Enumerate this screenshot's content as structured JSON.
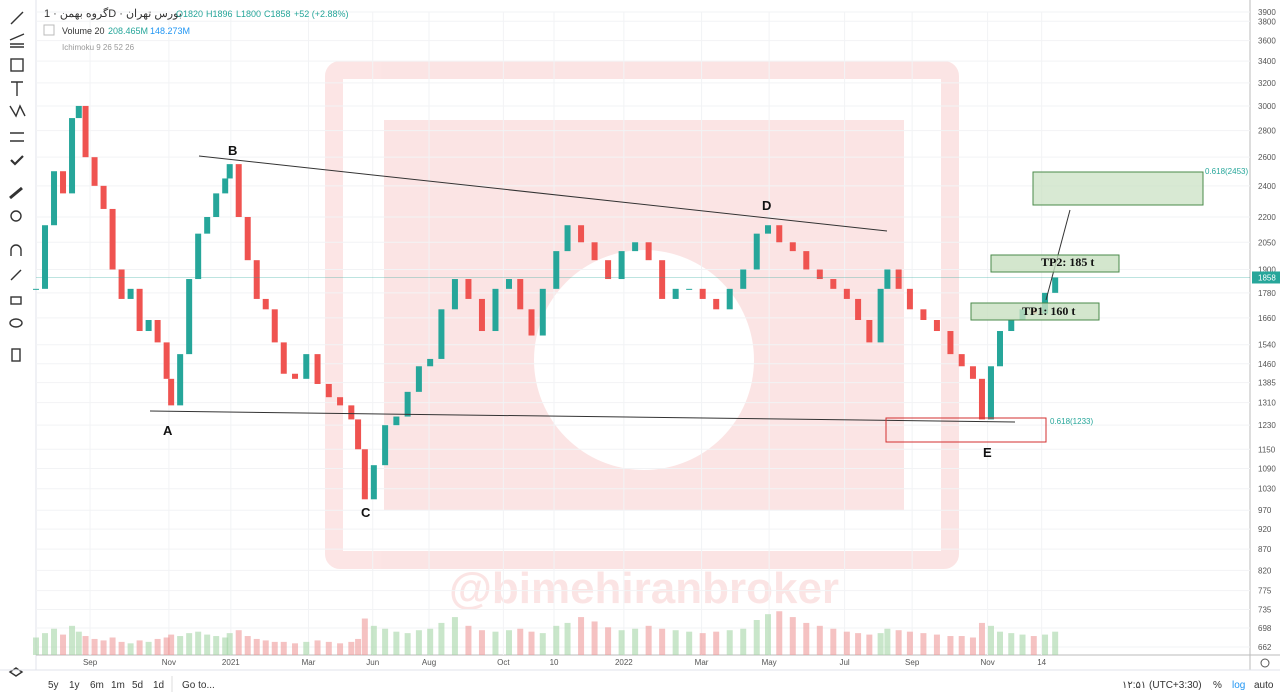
{
  "header": {
    "symbol": "گروه بهمن · 1D · بورس تهران",
    "open": "O1820",
    "high": "H1896",
    "low": "L1800",
    "close": "C1858",
    "change": "+52 (+2.88%)",
    "volume_label": "Volume 20",
    "volume_1": "208.465M",
    "volume_2": "148.273M",
    "ichimoku": "Ichimoku 9 26 52 26"
  },
  "chart_data": {
    "type": "candlestick",
    "log": true,
    "ylim": [
      662,
      3900
    ],
    "yticks": [
      3900,
      3800,
      3600,
      3400,
      3200,
      3000,
      2800,
      2600,
      2400,
      2200,
      2050,
      1900,
      1780,
      1660,
      1540,
      1460,
      1385,
      1310,
      1230,
      1150,
      1090,
      1030,
      970,
      920,
      870,
      820,
      775,
      735,
      698,
      662
    ],
    "xlim": [
      0,
      1078
    ],
    "xticks": [
      {
        "value": 48,
        "label": "Sep"
      },
      {
        "value": 118,
        "label": "Nov"
      },
      {
        "value": 173,
        "label": "2021"
      },
      {
        "value": 242,
        "label": "Mar"
      },
      {
        "value": 299,
        "label": "Jun"
      },
      {
        "value": 349,
        "label": "Aug"
      },
      {
        "value": 415,
        "label": "Oct"
      },
      {
        "value": 460,
        "label": "10"
      },
      {
        "value": 522,
        "label": "2022"
      },
      {
        "value": 591,
        "label": "Mar"
      },
      {
        "value": 651,
        "label": "May"
      },
      {
        "value": 718,
        "label": "Jul"
      },
      {
        "value": 778,
        "label": "Sep"
      },
      {
        "value": 845,
        "label": "Nov"
      },
      {
        "value": 893,
        "label": "14"
      }
    ],
    "x": [
      0,
      8,
      16,
      24,
      32,
      38,
      44,
      52,
      60,
      68,
      76,
      84,
      92,
      100,
      108,
      116,
      120,
      128,
      136,
      144,
      152,
      160,
      168,
      172,
      180,
      188,
      196,
      204,
      212,
      220,
      230,
      240,
      250,
      260,
      270,
      280,
      286,
      292,
      300,
      310,
      320,
      330,
      340,
      350,
      360,
      372,
      384,
      396,
      408,
      420,
      430,
      440,
      450,
      462,
      472,
      484,
      496,
      508,
      520,
      532,
      544,
      556,
      568,
      580,
      592,
      604,
      616,
      628,
      640,
      650,
      660,
      672,
      684,
      696,
      708,
      720,
      730,
      740,
      750,
      756,
      766,
      776,
      788,
      800,
      812,
      822,
      832,
      840,
      848,
      856,
      866,
      876,
      886,
      896,
      905
    ],
    "values": [
      1800,
      2150,
      2500,
      2350,
      2900,
      3000,
      2600,
      2400,
      2250,
      1900,
      1750,
      1800,
      1600,
      1650,
      1550,
      1400,
      1300,
      1500,
      1850,
      2100,
      2200,
      2350,
      2450,
      2550,
      2200,
      1950,
      1750,
      1700,
      1550,
      1420,
      1400,
      1500,
      1380,
      1330,
      1300,
      1250,
      1150,
      1000,
      1100,
      1230,
      1260,
      1350,
      1450,
      1480,
      1700,
      1850,
      1750,
      1600,
      1800,
      1850,
      1700,
      1580,
      1800,
      2000,
      2150,
      2050,
      1950,
      1850,
      2000,
      2050,
      1950,
      1750,
      1800,
      1800,
      1750,
      1700,
      1800,
      1900,
      2100,
      2150,
      2050,
      2000,
      1900,
      1850,
      1800,
      1750,
      1650,
      1550,
      1800,
      1900,
      1800,
      1700,
      1650,
      1600,
      1500,
      1450,
      1400,
      1250,
      1450,
      1600,
      1650,
      1700,
      1680,
      1780,
      1858
    ],
    "volume": [
      120,
      150,
      180,
      140,
      200,
      160,
      130,
      110,
      100,
      120,
      90,
      80,
      100,
      90,
      110,
      120,
      140,
      130,
      150,
      160,
      140,
      130,
      120,
      150,
      170,
      130,
      110,
      100,
      90,
      90,
      80,
      90,
      100,
      90,
      80,
      90,
      110,
      250,
      200,
      180,
      160,
      150,
      170,
      180,
      220,
      260,
      200,
      170,
      160,
      170,
      180,
      160,
      150,
      200,
      220,
      260,
      230,
      190,
      170,
      180,
      200,
      180,
      170,
      160,
      150,
      160,
      170,
      180,
      240,
      280,
      300,
      260,
      220,
      200,
      180,
      160,
      150,
      140,
      150,
      180,
      170,
      160,
      150,
      140,
      130,
      130,
      120,
      220,
      200,
      160,
      150,
      140,
      130,
      140,
      160
    ],
    "vlim": [
      0,
      1200
    ],
    "up_color": "#26a69a",
    "down_color": "#ef5350",
    "volume_color": "#8fd0f0",
    "last_price": "1858"
  },
  "annotations": {
    "a": "A",
    "b": "B",
    "c": "C",
    "d": "D",
    "e": "E",
    "tp2": "TP2:  185 t",
    "tp1": "TP1:  160 t",
    "fib_top": "0.618(2453)",
    "fib_bottom": "0.618(1233)",
    "watermark": "@bimehiranbroker"
  },
  "bottom_bar": {
    "ranges": [
      "5y",
      "1y",
      "6m",
      "1m",
      "5d",
      "1d"
    ],
    "goto": "Go to...",
    "clock": "۱۲:۵۱ (UTC+3:30)",
    "percent": "%",
    "log": "log",
    "auto": "auto"
  }
}
